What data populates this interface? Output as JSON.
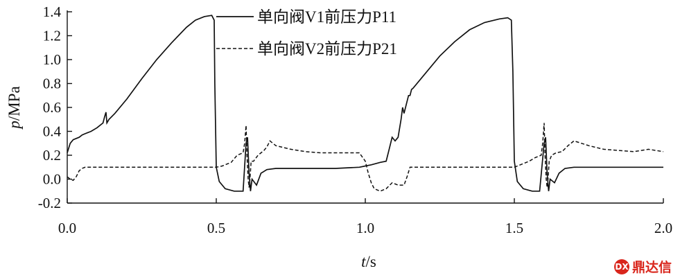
{
  "chart_data": {
    "type": "line",
    "title": "",
    "xlabel": "t/s",
    "xlabel_var": "t",
    "xlabel_unit": "/s",
    "ylabel": "p/MPa",
    "ylabel_var": "p",
    "ylabel_unit": "/MPa",
    "xlim": [
      0.0,
      2.0
    ],
    "ylim": [
      -0.2,
      1.4
    ],
    "x_ticks": [
      0.0,
      0.5,
      1.0,
      1.5,
      2.0
    ],
    "x_tick_labels": [
      "0.0",
      "0.5",
      "1.0",
      "1.5",
      "2.0"
    ],
    "y_ticks": [
      -0.2,
      0.0,
      0.2,
      0.4,
      0.6,
      0.8,
      1.0,
      1.2,
      1.4
    ],
    "y_tick_labels": [
      "-0.2",
      "0.0",
      "0.2",
      "0.4",
      "0.6",
      "0.8",
      "1.0",
      "1.2",
      "1.4"
    ],
    "grid": false,
    "legend_position": "top-center",
    "series": [
      {
        "name": "单向阀V1前压力P11",
        "style": "solid",
        "points": [
          [
            0.0,
            0.22
          ],
          [
            0.01,
            0.3
          ],
          [
            0.02,
            0.33
          ],
          [
            0.03,
            0.34
          ],
          [
            0.04,
            0.35
          ],
          [
            0.05,
            0.37
          ],
          [
            0.06,
            0.38
          ],
          [
            0.08,
            0.4
          ],
          [
            0.1,
            0.43
          ],
          [
            0.12,
            0.47
          ],
          [
            0.125,
            0.52
          ],
          [
            0.13,
            0.56
          ],
          [
            0.133,
            0.47
          ],
          [
            0.14,
            0.5
          ],
          [
            0.16,
            0.55
          ],
          [
            0.2,
            0.67
          ],
          [
            0.25,
            0.84
          ],
          [
            0.3,
            1.0
          ],
          [
            0.35,
            1.14
          ],
          [
            0.4,
            1.27
          ],
          [
            0.43,
            1.33
          ],
          [
            0.46,
            1.36
          ],
          [
            0.485,
            1.37
          ],
          [
            0.493,
            1.33
          ],
          [
            0.495,
            0.8
          ],
          [
            0.5,
            0.1
          ],
          [
            0.51,
            -0.02
          ],
          [
            0.53,
            -0.08
          ],
          [
            0.56,
            -0.1
          ],
          [
            0.59,
            -0.1
          ],
          [
            0.6,
            0.3
          ],
          [
            0.605,
            0.35
          ],
          [
            0.61,
            0.05
          ],
          [
            0.615,
            -0.1
          ],
          [
            0.62,
            0.0
          ],
          [
            0.635,
            -0.05
          ],
          [
            0.65,
            0.05
          ],
          [
            0.67,
            0.08
          ],
          [
            0.7,
            0.09
          ],
          [
            0.8,
            0.09
          ],
          [
            0.9,
            0.09
          ],
          [
            0.98,
            0.1
          ],
          [
            1.0,
            0.11
          ],
          [
            1.02,
            0.12
          ],
          [
            1.05,
            0.14
          ],
          [
            1.07,
            0.15
          ],
          [
            1.08,
            0.25
          ],
          [
            1.09,
            0.35
          ],
          [
            1.1,
            0.32
          ],
          [
            1.11,
            0.35
          ],
          [
            1.12,
            0.5
          ],
          [
            1.125,
            0.6
          ],
          [
            1.13,
            0.55
          ],
          [
            1.14,
            0.65
          ],
          [
            1.145,
            0.7
          ],
          [
            1.15,
            0.7
          ],
          [
            1.155,
            0.75
          ],
          [
            1.16,
            0.76
          ],
          [
            1.2,
            0.88
          ],
          [
            1.25,
            1.03
          ],
          [
            1.3,
            1.15
          ],
          [
            1.35,
            1.25
          ],
          [
            1.4,
            1.31
          ],
          [
            1.45,
            1.34
          ],
          [
            1.478,
            1.35
          ],
          [
            1.49,
            1.33
          ],
          [
            1.495,
            0.9
          ],
          [
            1.5,
            0.15
          ],
          [
            1.51,
            -0.02
          ],
          [
            1.53,
            -0.08
          ],
          [
            1.56,
            -0.1
          ],
          [
            1.585,
            -0.1
          ],
          [
            1.6,
            0.3
          ],
          [
            1.605,
            0.35
          ],
          [
            1.61,
            0.05
          ],
          [
            1.615,
            -0.1
          ],
          [
            1.62,
            0.0
          ],
          [
            1.635,
            -0.03
          ],
          [
            1.65,
            0.05
          ],
          [
            1.67,
            0.09
          ],
          [
            1.7,
            0.1
          ],
          [
            1.8,
            0.1
          ],
          [
            1.9,
            0.1
          ],
          [
            2.0,
            0.1
          ]
        ]
      },
      {
        "name": "单向阀V2前压力P21",
        "style": "dashed",
        "points": [
          [
            0.0,
            0.02
          ],
          [
            0.01,
            0.0
          ],
          [
            0.02,
            -0.01
          ],
          [
            0.03,
            0.02
          ],
          [
            0.04,
            0.07
          ],
          [
            0.05,
            0.09
          ],
          [
            0.06,
            0.1
          ],
          [
            0.1,
            0.1
          ],
          [
            0.2,
            0.1
          ],
          [
            0.3,
            0.1
          ],
          [
            0.4,
            0.1
          ],
          [
            0.5,
            0.1
          ],
          [
            0.52,
            0.11
          ],
          [
            0.55,
            0.14
          ],
          [
            0.57,
            0.2
          ],
          [
            0.59,
            0.22
          ],
          [
            0.595,
            0.3
          ],
          [
            0.6,
            0.45
          ],
          [
            0.603,
            0.2
          ],
          [
            0.607,
            0.0
          ],
          [
            0.61,
            -0.07
          ],
          [
            0.613,
            0.0
          ],
          [
            0.617,
            0.15
          ],
          [
            0.625,
            0.15
          ],
          [
            0.64,
            0.2
          ],
          [
            0.66,
            0.24
          ],
          [
            0.67,
            0.27
          ],
          [
            0.68,
            0.32
          ],
          [
            0.7,
            0.28
          ],
          [
            0.75,
            0.25
          ],
          [
            0.8,
            0.23
          ],
          [
            0.85,
            0.22
          ],
          [
            0.9,
            0.22
          ],
          [
            0.95,
            0.22
          ],
          [
            0.98,
            0.22
          ],
          [
            1.0,
            0.15
          ],
          [
            1.01,
            0.05
          ],
          [
            1.02,
            -0.03
          ],
          [
            1.03,
            -0.08
          ],
          [
            1.05,
            -0.1
          ],
          [
            1.07,
            -0.08
          ],
          [
            1.09,
            -0.03
          ],
          [
            1.11,
            -0.05
          ],
          [
            1.13,
            -0.05
          ],
          [
            1.14,
            0.02
          ],
          [
            1.15,
            0.1
          ],
          [
            1.2,
            0.1
          ],
          [
            1.3,
            0.1
          ],
          [
            1.4,
            0.1
          ],
          [
            1.5,
            0.1
          ],
          [
            1.52,
            0.12
          ],
          [
            1.55,
            0.15
          ],
          [
            1.57,
            0.18
          ],
          [
            1.59,
            0.2
          ],
          [
            1.595,
            0.3
          ],
          [
            1.6,
            0.47
          ],
          [
            1.603,
            0.2
          ],
          [
            1.607,
            0.0
          ],
          [
            1.61,
            -0.07
          ],
          [
            1.613,
            0.0
          ],
          [
            1.617,
            0.15
          ],
          [
            1.625,
            0.2
          ],
          [
            1.64,
            0.22
          ],
          [
            1.66,
            0.23
          ],
          [
            1.68,
            0.28
          ],
          [
            1.7,
            0.32
          ],
          [
            1.75,
            0.28
          ],
          [
            1.8,
            0.25
          ],
          [
            1.85,
            0.24
          ],
          [
            1.9,
            0.23
          ],
          [
            1.95,
            0.25
          ],
          [
            2.0,
            0.23
          ]
        ]
      }
    ]
  },
  "watermark": {
    "text": "鼎达信"
  }
}
